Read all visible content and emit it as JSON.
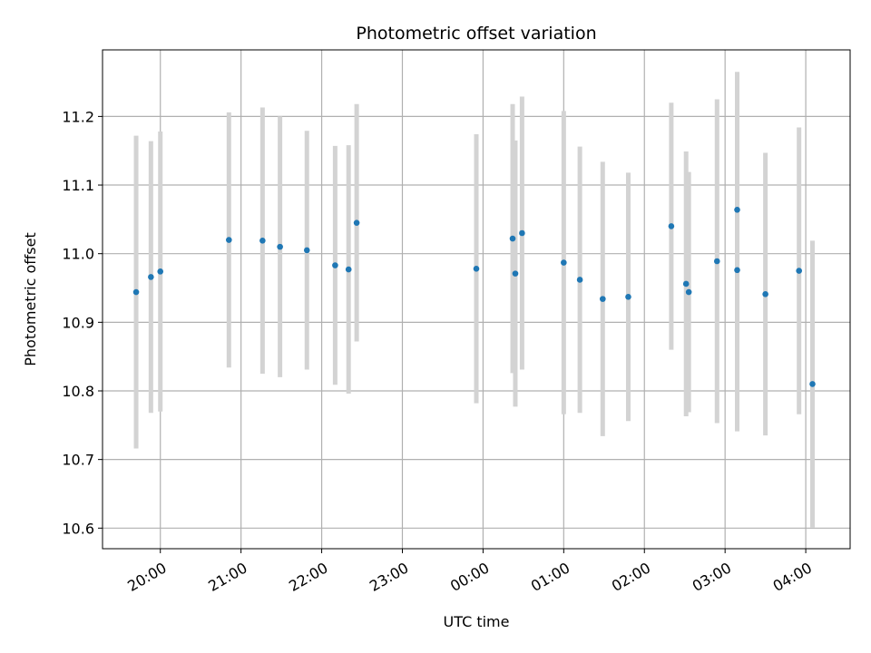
{
  "chart_data": {
    "type": "scatter",
    "title": "Photometric offset variation",
    "xlabel": "UTC time",
    "ylabel": "Photometric offset",
    "x_tick_labels": [
      "20:00",
      "21:00",
      "22:00",
      "23:00",
      "00:00",
      "01:00",
      "02:00",
      "03:00",
      "04:00"
    ],
    "y_ticks": [
      10.6,
      10.7,
      10.8,
      10.9,
      11.0,
      11.1,
      11.2
    ],
    "y_tick_labels": [
      "10.6",
      "10.7",
      "10.8",
      "10.9",
      "11.0",
      "11.1",
      "11.2"
    ],
    "xlim": [
      "19:17",
      "04:33"
    ],
    "ylim": [
      10.57,
      11.297
    ],
    "grid": true,
    "series": [
      {
        "marker_color": "#1f77b4",
        "errorbar_color": "#d3d3d3",
        "points": [
          {
            "x": "19:42",
            "y": 10.944,
            "err": 0.228
          },
          {
            "x": "19:53",
            "y": 10.966,
            "err": 0.198
          },
          {
            "x": "20:00",
            "y": 10.974,
            "err": 0.204
          },
          {
            "x": "20:51",
            "y": 11.02,
            "err": 0.186
          },
          {
            "x": "21:16",
            "y": 11.019,
            "err": 0.194
          },
          {
            "x": "21:29",
            "y": 11.01,
            "err": 0.19
          },
          {
            "x": "21:49",
            "y": 11.005,
            "err": 0.174
          },
          {
            "x": "22:10",
            "y": 10.983,
            "err": 0.174
          },
          {
            "x": "22:20",
            "y": 10.977,
            "err": 0.181
          },
          {
            "x": "22:26",
            "y": 11.045,
            "err": 0.173
          },
          {
            "x": "23:55",
            "y": 10.978,
            "err": 0.196
          },
          {
            "x": "00:22",
            "y": 11.022,
            "err": 0.196
          },
          {
            "x": "00:24",
            "y": 10.971,
            "err": 0.194
          },
          {
            "x": "00:29",
            "y": 11.03,
            "err": 0.199
          },
          {
            "x": "01:00",
            "y": 10.987,
            "err": 0.221
          },
          {
            "x": "01:12",
            "y": 10.962,
            "err": 0.194
          },
          {
            "x": "01:29",
            "y": 10.934,
            "err": 0.2
          },
          {
            "x": "01:48",
            "y": 10.937,
            "err": 0.181
          },
          {
            "x": "02:20",
            "y": 11.04,
            "err": 0.18
          },
          {
            "x": "02:31",
            "y": 10.956,
            "err": 0.193
          },
          {
            "x": "02:33",
            "y": 10.944,
            "err": 0.175
          },
          {
            "x": "02:54",
            "y": 10.989,
            "err": 0.236
          },
          {
            "x": "03:09",
            "y": 11.064,
            "err": 0.201
          },
          {
            "x": "03:09",
            "y": 10.976,
            "err": 0.235
          },
          {
            "x": "03:30",
            "y": 10.941,
            "err": 0.206
          },
          {
            "x": "03:55",
            "y": 10.975,
            "err": 0.209
          },
          {
            "x": "04:05",
            "y": 10.81,
            "err": 0.209
          }
        ]
      }
    ]
  }
}
